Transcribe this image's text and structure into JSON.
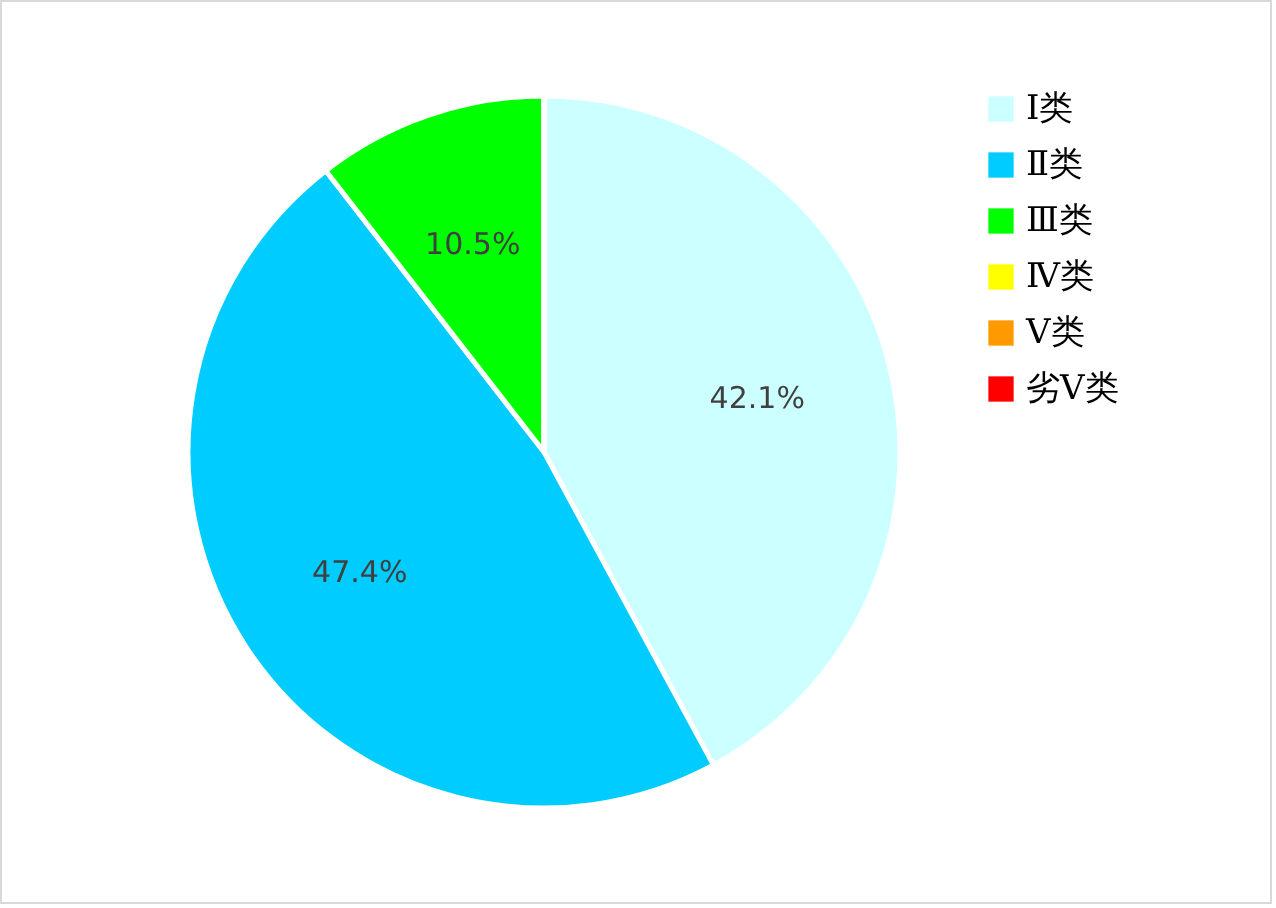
{
  "chart_data": {
    "type": "pie",
    "categories": [
      "Ⅰ类",
      "Ⅱ类",
      "Ⅲ类",
      "Ⅳ类",
      "Ⅴ类",
      "劣Ⅴ类"
    ],
    "values": [
      42.1,
      47.4,
      10.5,
      0,
      0,
      0
    ],
    "colors": [
      "#ccffff",
      "#00ccff",
      "#00ff00",
      "#ffff00",
      "#ff9900",
      "#ff0000"
    ],
    "value_labels": [
      "42.1%",
      "47.4%",
      "10.5%",
      null,
      null,
      null
    ],
    "legend": "right"
  }
}
